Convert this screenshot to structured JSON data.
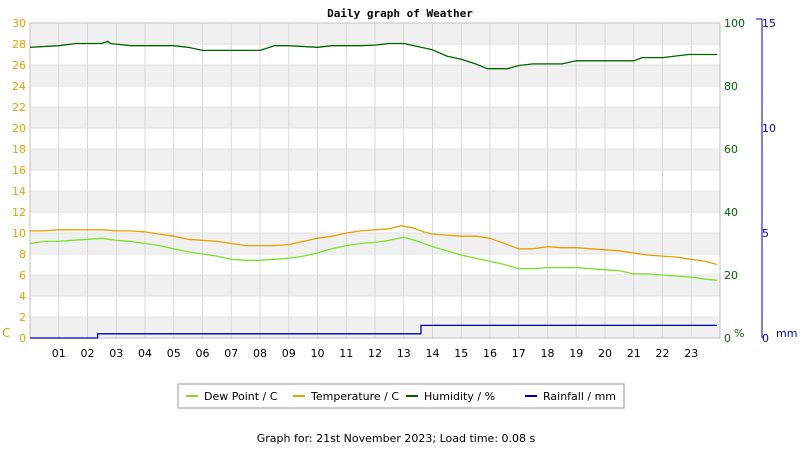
{
  "chart_data": {
    "type": "line",
    "title": "Daily graph of Weather",
    "x_ticks": [
      "01",
      "02",
      "03",
      "04",
      "05",
      "06",
      "07",
      "08",
      "09",
      "10",
      "11",
      "12",
      "13",
      "14",
      "15",
      "16",
      "17",
      "18",
      "19",
      "20",
      "21",
      "22",
      "23"
    ],
    "xlim": [
      0,
      24
    ],
    "axes": {
      "left": {
        "unit": "C",
        "ylim": [
          0,
          30
        ],
        "ticks": [
          0,
          2,
          4,
          6,
          8,
          10,
          12,
          14,
          16,
          18,
          20,
          22,
          24,
          26,
          28,
          30
        ],
        "color": "#e6a000"
      },
      "right1": {
        "unit": "%",
        "ylim": [
          0,
          100
        ],
        "ticks": [
          0,
          20,
          40,
          60,
          80,
          100
        ],
        "color": "#006400"
      },
      "right2": {
        "unit": "mm",
        "ylim": [
          0,
          15
        ],
        "ticks": [
          0,
          5,
          10,
          15
        ],
        "color": "#0000b4"
      }
    },
    "grid": true,
    "series": [
      {
        "name": "Dew Point / C",
        "axis": "left",
        "color": "#7fe02a",
        "points": [
          [
            0,
            9.0
          ],
          [
            0.5,
            9.2
          ],
          [
            1,
            9.2
          ],
          [
            1.5,
            9.3
          ],
          [
            2,
            9.4
          ],
          [
            2.5,
            9.5
          ],
          [
            3,
            9.3
          ],
          [
            3.5,
            9.2
          ],
          [
            4,
            9.0
          ],
          [
            4.5,
            8.8
          ],
          [
            5,
            8.5
          ],
          [
            5.5,
            8.2
          ],
          [
            6,
            8.0
          ],
          [
            6.5,
            7.8
          ],
          [
            7,
            7.5
          ],
          [
            7.5,
            7.4
          ],
          [
            8,
            7.4
          ],
          [
            8.5,
            7.5
          ],
          [
            9,
            7.6
          ],
          [
            9.5,
            7.8
          ],
          [
            10,
            8.1
          ],
          [
            10.5,
            8.5
          ],
          [
            11,
            8.8
          ],
          [
            11.5,
            9.0
          ],
          [
            12,
            9.1
          ],
          [
            12.5,
            9.3
          ],
          [
            13,
            9.6
          ],
          [
            13.5,
            9.2
          ],
          [
            14,
            8.7
          ],
          [
            14.5,
            8.3
          ],
          [
            15,
            7.9
          ],
          [
            15.5,
            7.6
          ],
          [
            16,
            7.3
          ],
          [
            16.5,
            7.0
          ],
          [
            17,
            6.6
          ],
          [
            17.5,
            6.6
          ],
          [
            18,
            6.7
          ],
          [
            18.5,
            6.7
          ],
          [
            19,
            6.7
          ],
          [
            19.5,
            6.6
          ],
          [
            20,
            6.5
          ],
          [
            20.5,
            6.4
          ],
          [
            21,
            6.1
          ],
          [
            21.5,
            6.1
          ],
          [
            22,
            6.0
          ],
          [
            22.5,
            5.9
          ],
          [
            23,
            5.8
          ],
          [
            23.5,
            5.6
          ],
          [
            23.9,
            5.5
          ]
        ]
      },
      {
        "name": "Temperature / C",
        "axis": "left",
        "color": "#e6a000",
        "points": [
          [
            0,
            10.2
          ],
          [
            0.5,
            10.2
          ],
          [
            1,
            10.3
          ],
          [
            1.5,
            10.3
          ],
          [
            2,
            10.3
          ],
          [
            2.5,
            10.3
          ],
          [
            3,
            10.2
          ],
          [
            3.5,
            10.2
          ],
          [
            4,
            10.1
          ],
          [
            4.5,
            9.9
          ],
          [
            5,
            9.7
          ],
          [
            5.5,
            9.4
          ],
          [
            6,
            9.3
          ],
          [
            6.5,
            9.2
          ],
          [
            7,
            9.0
          ],
          [
            7.5,
            8.8
          ],
          [
            8,
            8.8
          ],
          [
            8.5,
            8.8
          ],
          [
            9,
            8.9
          ],
          [
            9.5,
            9.2
          ],
          [
            10,
            9.5
          ],
          [
            10.5,
            9.7
          ],
          [
            11,
            10.0
          ],
          [
            11.5,
            10.2
          ],
          [
            12,
            10.3
          ],
          [
            12.5,
            10.4
          ],
          [
            12.9,
            10.7
          ],
          [
            13.3,
            10.5
          ],
          [
            13.7,
            10.1
          ],
          [
            14,
            9.9
          ],
          [
            14.5,
            9.8
          ],
          [
            15,
            9.7
          ],
          [
            15.5,
            9.7
          ],
          [
            16,
            9.5
          ],
          [
            16.5,
            9.0
          ],
          [
            17,
            8.5
          ],
          [
            17.5,
            8.5
          ],
          [
            18,
            8.7
          ],
          [
            18.5,
            8.6
          ],
          [
            19,
            8.6
          ],
          [
            19.5,
            8.5
          ],
          [
            20,
            8.4
          ],
          [
            20.5,
            8.3
          ],
          [
            21,
            8.1
          ],
          [
            21.5,
            7.9
          ],
          [
            22,
            7.8
          ],
          [
            22.5,
            7.7
          ],
          [
            23,
            7.5
          ],
          [
            23.5,
            7.3
          ],
          [
            23.9,
            7.0
          ]
        ]
      },
      {
        "name": "Humidity / %",
        "axis": "right1",
        "color": "#006400",
        "points": [
          [
            0,
            92.3
          ],
          [
            1,
            92.8
          ],
          [
            1.6,
            93.5
          ],
          [
            2.5,
            93.5
          ],
          [
            2.7,
            94.2
          ],
          [
            2.8,
            93.5
          ],
          [
            3.5,
            92.8
          ],
          [
            5,
            92.8
          ],
          [
            5.5,
            92.3
          ],
          [
            6,
            91.3
          ],
          [
            7,
            91.3
          ],
          [
            8,
            91.3
          ],
          [
            8.5,
            92.8
          ],
          [
            9,
            92.8
          ],
          [
            10,
            92.3
          ],
          [
            10.5,
            92.8
          ],
          [
            11,
            92.8
          ],
          [
            11.5,
            92.8
          ],
          [
            12,
            93.0
          ],
          [
            12.5,
            93.5
          ],
          [
            13,
            93.5
          ],
          [
            13.5,
            92.5
          ],
          [
            14,
            91.5
          ],
          [
            14.5,
            89.5
          ],
          [
            15,
            88.5
          ],
          [
            15.5,
            87.0
          ],
          [
            15.9,
            85.5
          ],
          [
            16.6,
            85.5
          ],
          [
            17,
            86.5
          ],
          [
            17.5,
            87.0
          ],
          [
            18,
            87.0
          ],
          [
            18.5,
            87.0
          ],
          [
            19,
            88.0
          ],
          [
            20,
            88.0
          ],
          [
            21,
            88.0
          ],
          [
            21.3,
            89.0
          ],
          [
            22,
            89.0
          ],
          [
            22.9,
            90.0
          ],
          [
            23.5,
            90.0
          ],
          [
            23.9,
            90.0
          ]
        ]
      },
      {
        "name": "Rainfall / mm",
        "axis": "right2",
        "color": "#0000b4",
        "step": true,
        "points": [
          [
            0,
            0
          ],
          [
            2.35,
            0
          ],
          [
            2.35,
            0.2
          ],
          [
            13.6,
            0.2
          ],
          [
            13.6,
            0.6
          ],
          [
            23.9,
            0.6
          ]
        ]
      }
    ],
    "legend_position": "bottom-center"
  },
  "footer": "Graph for: 21st November 2023; Load time: 0.08 s"
}
